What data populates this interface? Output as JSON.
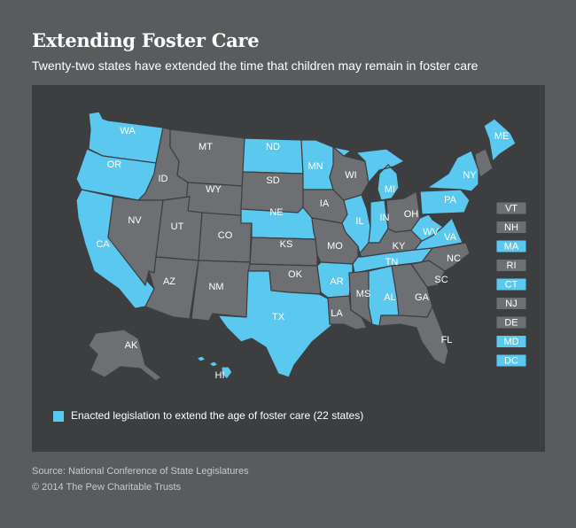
{
  "title": "Extending Foster Care",
  "subtitle": "Twenty-two states have extended the time that children may remain in foster care",
  "colors": {
    "background": "#5a5b5d",
    "panel": "#3d3e40",
    "extended": "#5bc8f0",
    "not_extended": "#6e6f72",
    "small_state_gray": "#8a8b8e"
  },
  "legend": {
    "label": "Enacted legislation to extend the age of foster care (22 states)"
  },
  "states": [
    {
      "code": "WA",
      "extended": true
    },
    {
      "code": "OR",
      "extended": true
    },
    {
      "code": "CA",
      "extended": true
    },
    {
      "code": "ID",
      "extended": false
    },
    {
      "code": "NV",
      "extended": false
    },
    {
      "code": "MT",
      "extended": false
    },
    {
      "code": "WY",
      "extended": false
    },
    {
      "code": "UT",
      "extended": false
    },
    {
      "code": "AZ",
      "extended": false
    },
    {
      "code": "CO",
      "extended": false
    },
    {
      "code": "NM",
      "extended": false
    },
    {
      "code": "ND",
      "extended": true
    },
    {
      "code": "SD",
      "extended": false
    },
    {
      "code": "NE",
      "extended": true
    },
    {
      "code": "KS",
      "extended": false
    },
    {
      "code": "OK",
      "extended": false
    },
    {
      "code": "TX",
      "extended": true
    },
    {
      "code": "MN",
      "extended": true
    },
    {
      "code": "IA",
      "extended": false
    },
    {
      "code": "MO",
      "extended": false
    },
    {
      "code": "AR",
      "extended": true
    },
    {
      "code": "LA",
      "extended": false
    },
    {
      "code": "WI",
      "extended": false
    },
    {
      "code": "IL",
      "extended": true
    },
    {
      "code": "MI",
      "extended": true
    },
    {
      "code": "IN",
      "extended": true
    },
    {
      "code": "OH",
      "extended": false
    },
    {
      "code": "KY",
      "extended": false
    },
    {
      "code": "TN",
      "extended": true
    },
    {
      "code": "MS",
      "extended": false
    },
    {
      "code": "AL",
      "extended": true
    },
    {
      "code": "GA",
      "extended": false
    },
    {
      "code": "FL",
      "extended": false
    },
    {
      "code": "SC",
      "extended": false
    },
    {
      "code": "NC",
      "extended": false
    },
    {
      "code": "VA",
      "extended": true
    },
    {
      "code": "WV",
      "extended": true
    },
    {
      "code": "PA",
      "extended": true
    },
    {
      "code": "NY",
      "extended": true
    },
    {
      "code": "ME",
      "extended": true
    },
    {
      "code": "AK",
      "extended": false
    },
    {
      "code": "HI",
      "extended": true
    }
  ],
  "small_states": [
    {
      "code": "VT",
      "extended": false
    },
    {
      "code": "NH",
      "extended": false
    },
    {
      "code": "MA",
      "extended": true
    },
    {
      "code": "RI",
      "extended": false
    },
    {
      "code": "CT",
      "extended": true
    },
    {
      "code": "NJ",
      "extended": false
    },
    {
      "code": "DE",
      "extended": false
    },
    {
      "code": "MD",
      "extended": true
    },
    {
      "code": "DC",
      "extended": true
    }
  ],
  "source": "Source: National Conference of State Legislatures",
  "copyright": "© 2014 The Pew Charitable Trusts"
}
